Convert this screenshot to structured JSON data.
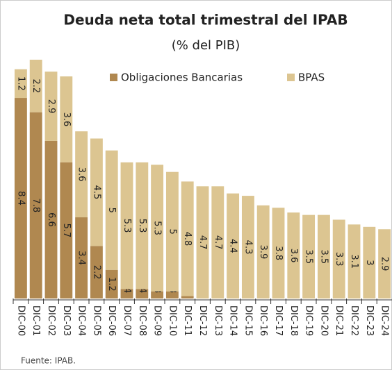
{
  "chart_data": {
    "type": "stacked_bar",
    "title": "Deuda neta total trimestral del IPAB",
    "subtitle": "(% del PIB)",
    "source": "Fuente: IPAB.",
    "categories": [
      "DIC-00",
      "DIC-01",
      "DIC-02",
      "DIC-03",
      "DIC-04",
      "DIC-05",
      "DIC-06",
      "DIC-07",
      "DIC-08",
      "DIC-09",
      "DIC-10",
      "DIC-11",
      "DIC-12",
      "DIC-13",
      "DIC-14",
      "DIC-15",
      "DIC-16",
      "DIC-17",
      "DIC-18",
      "DIC-19",
      "DIC-20",
      "DIC-21",
      "DIC-22",
      "DIC-23",
      "DIC-24"
    ],
    "series": [
      {
        "name": "Obligaciones Bancarias",
        "color": "#b08850",
        "values": [
          8.4,
          7.8,
          6.6,
          5.7,
          3.4,
          2.2,
          1.2,
          0.4,
          0.4,
          0.3,
          0.3,
          0.1,
          0.0,
          null,
          null,
          null,
          null,
          null,
          null,
          null,
          null,
          null,
          null,
          null,
          null
        ]
      },
      {
        "name": "BPAS",
        "color": "#dcc591",
        "values": [
          1.2,
          2.2,
          2.9,
          3.6,
          3.6,
          4.5,
          5.0,
          5.3,
          5.3,
          5.3,
          5.0,
          4.8,
          4.7,
          4.7,
          4.4,
          4.3,
          3.9,
          3.8,
          3.6,
          3.5,
          3.5,
          3.3,
          3.1,
          3.0,
          2.9
        ]
      }
    ],
    "ylim": [
      0,
      10
    ],
    "legend": "top-right"
  }
}
